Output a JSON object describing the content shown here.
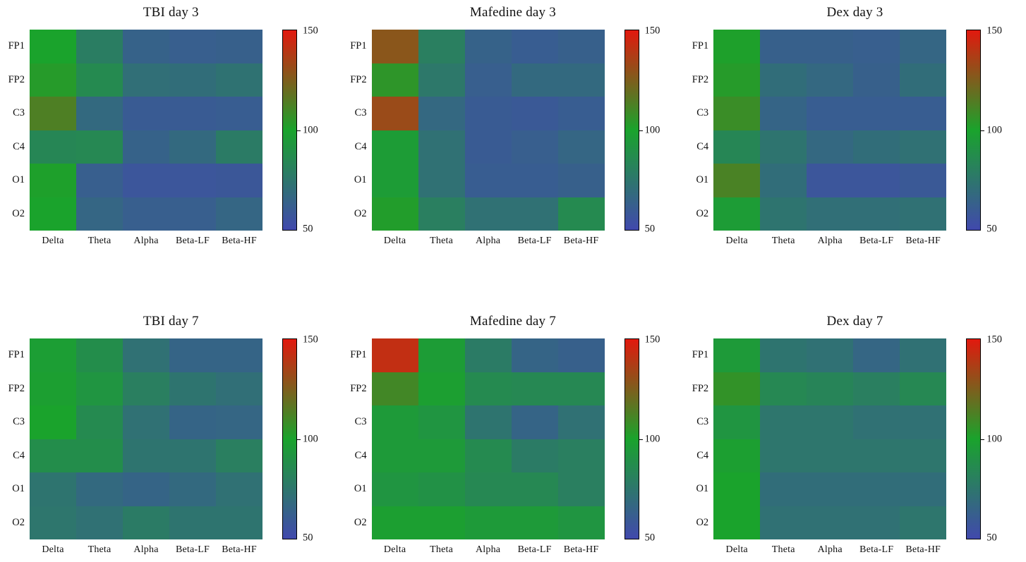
{
  "figure": {
    "row_labels": [
      "FP1",
      "FP2",
      "C3",
      "C4",
      "O1",
      "O2"
    ],
    "col_labels": [
      "Delta",
      "Theta",
      "Alpha",
      "Beta-LF",
      "Beta-HF"
    ],
    "colorbar": {
      "tick_labels": [
        "150",
        "100",
        "50"
      ],
      "min": 50,
      "max": 150
    },
    "colormap_stops": [
      {
        "value": 50,
        "color": "#4149ad"
      },
      {
        "value": 100,
        "color": "#1aa32c"
      },
      {
        "value": 150,
        "color": "#e2190e"
      }
    ]
  },
  "chart_data": [
    {
      "type": "heatmap",
      "title": "TBI day 3",
      "rows": [
        "FP1",
        "FP2",
        "C3",
        "C4",
        "O1",
        "O2"
      ],
      "cols": [
        "Delta",
        "Theta",
        "Alpha",
        "Beta-LF",
        "Beta-HF"
      ],
      "vmin": 50,
      "vmax": 150,
      "values": [
        [
          100,
          79,
          64,
          62,
          63
        ],
        [
          103,
          86,
          71,
          70,
          73
        ],
        [
          113,
          68,
          60,
          60,
          61
        ],
        [
          84,
          85,
          64,
          68,
          78
        ],
        [
          101,
          62,
          57,
          57,
          58
        ],
        [
          100,
          66,
          62,
          62,
          66
        ]
      ]
    },
    {
      "type": "heatmap",
      "title": "Mafedine day 3",
      "rows": [
        "FP1",
        "FP2",
        "C3",
        "C4",
        "O1",
        "O2"
      ],
      "cols": [
        "Delta",
        "Theta",
        "Alpha",
        "Beta-LF",
        "Beta-HF"
      ],
      "vmin": 50,
      "vmax": 150,
      "values": [
        [
          128,
          80,
          64,
          61,
          63
        ],
        [
          105,
          76,
          62,
          68,
          68
        ],
        [
          132,
          67,
          60,
          59,
          61
        ],
        [
          96,
          72,
          60,
          62,
          66
        ],
        [
          96,
          72,
          61,
          61,
          63
        ],
        [
          102,
          80,
          72,
          72,
          86
        ]
      ]
    },
    {
      "type": "heatmap",
      "title": "Dex day 3",
      "rows": [
        "FP1",
        "FP2",
        "C3",
        "C4",
        "O1",
        "O2"
      ],
      "cols": [
        "Delta",
        "Theta",
        "Alpha",
        "Beta-LF",
        "Beta-HF"
      ],
      "vmin": 50,
      "vmax": 150,
      "values": [
        [
          101,
          63,
          63,
          62,
          66
        ],
        [
          103,
          70,
          67,
          63,
          70
        ],
        [
          108,
          65,
          61,
          61,
          61
        ],
        [
          84,
          74,
          67,
          70,
          72
        ],
        [
          112,
          70,
          57,
          57,
          59
        ],
        [
          96,
          74,
          71,
          71,
          72
        ]
      ]
    },
    {
      "type": "heatmap",
      "title": "TBI day 7",
      "rows": [
        "FP1",
        "FP2",
        "C3",
        "C4",
        "O1",
        "O2"
      ],
      "cols": [
        "Delta",
        "Theta",
        "Alpha",
        "Beta-LF",
        "Beta-HF"
      ],
      "vmin": 50,
      "vmax": 150,
      "values": [
        [
          97,
          88,
          72,
          65,
          65
        ],
        [
          98,
          92,
          80,
          74,
          71
        ],
        [
          100,
          86,
          72,
          65,
          66
        ],
        [
          88,
          88,
          74,
          74,
          80
        ],
        [
          74,
          68,
          65,
          68,
          72
        ],
        [
          75,
          72,
          78,
          74,
          74
        ]
      ]
    },
    {
      "type": "heatmap",
      "title": "Mafedine day 7",
      "rows": [
        "FP1",
        "FP2",
        "C3",
        "C4",
        "O1",
        "O2"
      ],
      "cols": [
        "Delta",
        "Theta",
        "Alpha",
        "Beta-LF",
        "Beta-HF"
      ],
      "vmin": 50,
      "vmax": 150,
      "values": [
        [
          142,
          96,
          78,
          65,
          63
        ],
        [
          110,
          98,
          86,
          85,
          85
        ],
        [
          95,
          92,
          74,
          65,
          72
        ],
        [
          95,
          95,
          86,
          78,
          80
        ],
        [
          92,
          90,
          85,
          85,
          80
        ],
        [
          98,
          98,
          95,
          95,
          92
        ]
      ]
    },
    {
      "type": "heatmap",
      "title": "Dex day 7",
      "rows": [
        "FP1",
        "FP2",
        "C3",
        "C4",
        "O1",
        "O2"
      ],
      "cols": [
        "Delta",
        "Theta",
        "Alpha",
        "Beta-LF",
        "Beta-HF"
      ],
      "vmin": 50,
      "vmax": 150,
      "values": [
        [
          95,
          74,
          72,
          66,
          72
        ],
        [
          106,
          85,
          83,
          80,
          85
        ],
        [
          92,
          75,
          75,
          72,
          72
        ],
        [
          98,
          75,
          75,
          75,
          75
        ],
        [
          100,
          70,
          70,
          70,
          70
        ],
        [
          100,
          72,
          72,
          72,
          75
        ]
      ]
    }
  ]
}
